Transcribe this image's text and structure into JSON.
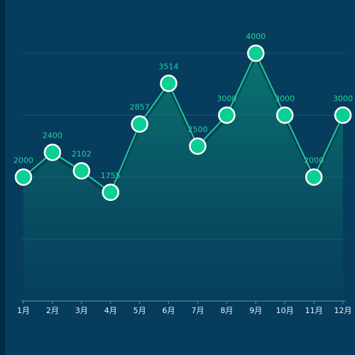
{
  "theme": {
    "background": "#002b47",
    "panel": "#063c5c",
    "line": "#20c9a0",
    "marker_fill": "#0ccf95",
    "marker_stroke": "#ffffff",
    "label": "#21d3a3",
    "axis_text": "#e6f3ff"
  },
  "chart_data": {
    "type": "area",
    "categories": [
      "1月",
      "2月",
      "3月",
      "4月",
      "5月",
      "6月",
      "7月",
      "8月",
      "9月",
      "10月",
      "11月",
      "12月"
    ],
    "series": [
      {
        "values": [
          2000,
          2400,
          2102,
          1755,
          2857,
          3514,
          2500,
          3000,
          4000,
          3000,
          2000,
          3000
        ],
        "labels": [
          "2000",
          "2400",
          "2102",
          "1755",
          "2857",
          "3514",
          "2500",
          "3000",
          "4000",
          "3000",
          "2000",
          "3000"
        ]
      }
    ],
    "title": "",
    "xlabel": "",
    "ylabel": "",
    "ylim": [
      0,
      4000
    ],
    "grid": true,
    "legend": "none",
    "smooth": false
  }
}
